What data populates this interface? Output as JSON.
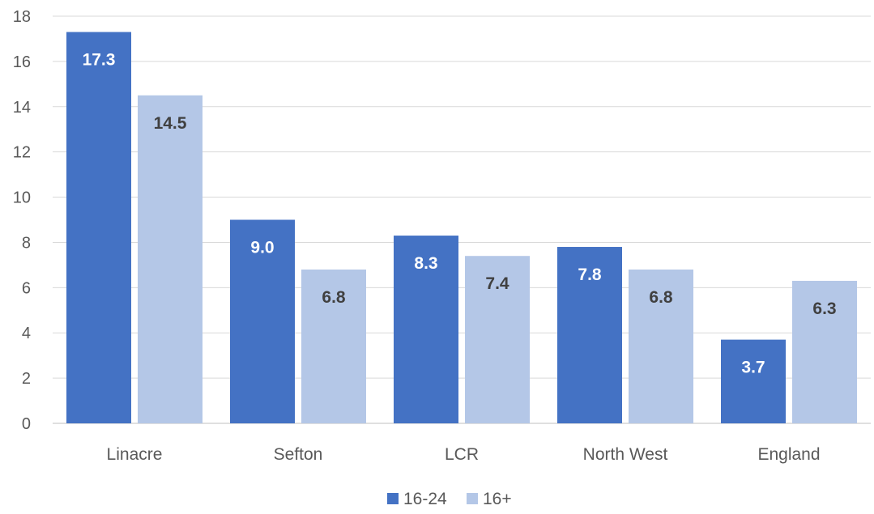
{
  "chart_data": {
    "type": "bar",
    "categories": [
      "Linacre",
      "Sefton",
      "LCR",
      "North West",
      "England"
    ],
    "series": [
      {
        "name": "16-24",
        "values": [
          17.3,
          9.0,
          8.3,
          7.8,
          3.7
        ],
        "labels": [
          "17.3",
          "9.0",
          "8.3",
          "7.8",
          "3.7"
        ],
        "color": "#4472C4",
        "label_color": "#ffffff"
      },
      {
        "name": "16+",
        "values": [
          14.5,
          6.8,
          7.4,
          6.8,
          6.3
        ],
        "labels": [
          "14.5",
          "6.8",
          "7.4",
          "6.8",
          "6.3"
        ],
        "color": "#B4C7E7",
        "label_color": "#404040"
      }
    ],
    "yticks": [
      0,
      2,
      4,
      6,
      8,
      10,
      12,
      14,
      16,
      18
    ],
    "ylim": [
      0,
      18
    ],
    "grid": true,
    "legend": "bottom-center",
    "title": "",
    "xlabel": "",
    "ylabel": ""
  }
}
